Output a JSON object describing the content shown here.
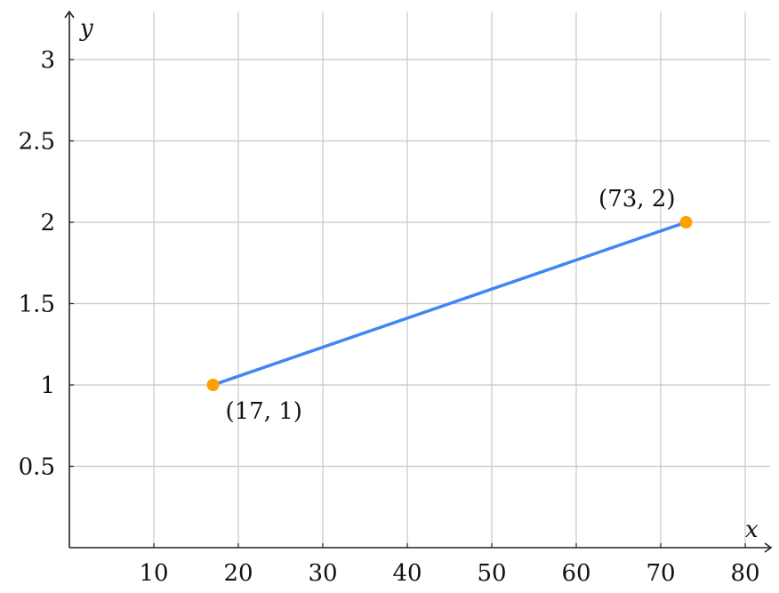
{
  "chart_data": {
    "type": "line",
    "xlabel": "x",
    "ylabel": "y",
    "xlim": [
      0,
      83
    ],
    "ylim": [
      0,
      3.3
    ],
    "grid": true,
    "x_ticks": [
      10,
      20,
      30,
      40,
      50,
      60,
      70,
      80
    ],
    "y_ticks": [
      0.5,
      1,
      1.5,
      2,
      2.5,
      3
    ],
    "x_tick_labels": [
      "10",
      "20",
      "30",
      "40",
      "50",
      "60",
      "70",
      "80"
    ],
    "y_tick_labels": [
      "0.5",
      "1",
      "1.5",
      "2",
      "2.5",
      "3"
    ],
    "series": [
      {
        "x": [
          17,
          73
        ],
        "y": [
          1,
          2
        ],
        "line_color": "#4285f4",
        "point_color": "#ffa000"
      }
    ],
    "annotations": [
      {
        "text": "(17, 1)",
        "x": 17,
        "y": 1,
        "position": "below-right"
      },
      {
        "text": "(73, 2)",
        "x": 73,
        "y": 2,
        "position": "above-left"
      }
    ]
  }
}
